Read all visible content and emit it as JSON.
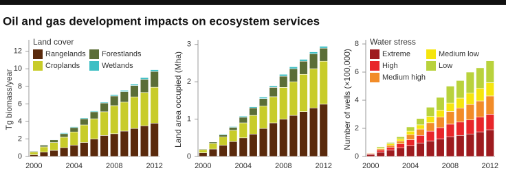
{
  "title": "Oil and gas development impacts on ecosystem services",
  "chart_data": [
    {
      "type": "bar",
      "stacked": true,
      "y_label": "Tg biomass/year",
      "legend_title": "Land cover",
      "categories": [
        "2000",
        null,
        null,
        null,
        "2004",
        null,
        null,
        null,
        "2008",
        null,
        null,
        null,
        "2012"
      ],
      "series": [
        {
          "name": "Rangelands",
          "color": "#5a2a0c",
          "values": [
            0.2,
            0.5,
            0.7,
            1.0,
            1.3,
            1.6,
            2.0,
            2.4,
            2.6,
            2.9,
            3.2,
            3.5,
            3.8
          ]
        },
        {
          "name": "Croplands",
          "color": "#c8cc2a",
          "values": [
            0.3,
            0.6,
            0.9,
            1.2,
            1.5,
            2.0,
            2.3,
            2.7,
            3.2,
            3.3,
            3.6,
            3.8,
            4.1
          ]
        },
        {
          "name": "Forestlands",
          "color": "#5b6e37",
          "values": [
            0.1,
            0.2,
            0.3,
            0.4,
            0.5,
            0.7,
            0.8,
            1.0,
            1.1,
            1.2,
            1.3,
            1.5,
            1.8
          ]
        },
        {
          "name": "Wetlands",
          "color": "#3fbfc4",
          "values": [
            0.05,
            0.05,
            0.05,
            0.1,
            0.1,
            0.1,
            0.1,
            0.1,
            0.15,
            0.15,
            0.15,
            0.2,
            0.2
          ]
        }
      ],
      "ylim": [
        0,
        13
      ],
      "yticks": [
        0,
        2,
        4,
        6,
        8,
        10,
        12
      ]
    },
    {
      "type": "bar",
      "stacked": true,
      "y_label": "Land area occupied (Mha)",
      "categories": [
        "2000",
        null,
        null,
        null,
        "2004",
        null,
        null,
        null,
        "2008",
        null,
        null,
        null,
        "2012"
      ],
      "series": [
        {
          "color": "#5a2a0c",
          "values": [
            0.1,
            0.2,
            0.3,
            0.4,
            0.5,
            0.6,
            0.75,
            0.9,
            1.0,
            1.1,
            1.2,
            1.3,
            1.4
          ]
        },
        {
          "color": "#c8cc2a",
          "values": [
            0.08,
            0.15,
            0.22,
            0.3,
            0.4,
            0.5,
            0.6,
            0.7,
            0.85,
            0.9,
            1.0,
            1.05,
            1.15
          ]
        },
        {
          "color": "#5b6e37",
          "values": [
            0.02,
            0.04,
            0.06,
            0.08,
            0.15,
            0.2,
            0.2,
            0.25,
            0.3,
            0.35,
            0.35,
            0.4,
            0.35
          ]
        },
        {
          "color": "#3fbfc4",
          "values": [
            0.01,
            0.01,
            0.02,
            0.02,
            0.03,
            0.03,
            0.04,
            0.04,
            0.05,
            0.05,
            0.05,
            0.05,
            0.05
          ]
        }
      ],
      "ylim": [
        0,
        3.05
      ],
      "yticks": [
        0,
        1,
        2,
        3
      ]
    },
    {
      "type": "bar",
      "stacked": true,
      "y_label": "Number of wells (×100,000)",
      "legend_title": "Water stress",
      "categories": [
        "2000",
        null,
        null,
        null,
        "2004",
        null,
        null,
        null,
        "2008",
        null,
        null,
        null,
        "2012"
      ],
      "series": [
        {
          "name": "Extreme",
          "color": "#9e1b1f",
          "values": [
            0.15,
            0.3,
            0.45,
            0.6,
            0.75,
            0.95,
            1.1,
            1.25,
            1.4,
            1.5,
            1.6,
            1.75,
            1.9
          ]
        },
        {
          "name": "High",
          "color": "#e8262a",
          "values": [
            0.05,
            0.15,
            0.2,
            0.3,
            0.45,
            0.55,
            0.7,
            0.8,
            0.9,
            0.95,
            1.0,
            1.05,
            1.1
          ]
        },
        {
          "name": "Medium high",
          "color": "#f28c28",
          "values": [
            0.05,
            0.1,
            0.15,
            0.2,
            0.35,
            0.45,
            0.6,
            0.75,
            0.9,
            1.0,
            1.1,
            1.15,
            1.3
          ]
        },
        {
          "name": "Medium low",
          "color": "#f5e50e",
          "values": [
            0.03,
            0.05,
            0.1,
            0.15,
            0.25,
            0.3,
            0.45,
            0.5,
            0.6,
            0.7,
            0.8,
            0.9,
            0.95
          ]
        },
        {
          "name": "Low",
          "color": "#b9d23c",
          "values": [
            0.02,
            0.1,
            0.1,
            0.15,
            0.3,
            0.45,
            0.65,
            0.9,
            1.2,
            1.25,
            1.5,
            1.45,
            1.55
          ]
        }
      ],
      "ylim": [
        0,
        8.1
      ],
      "yticks": [
        0,
        2,
        4,
        6,
        8
      ]
    }
  ]
}
